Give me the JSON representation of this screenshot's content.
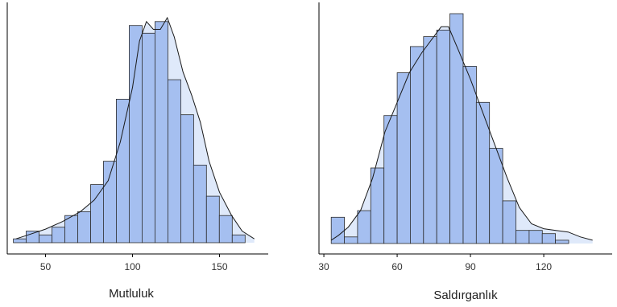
{
  "chart_data": [
    {
      "type": "bar",
      "title": "",
      "xlabel": "Mutluluk",
      "ylabel": "",
      "xlim": [
        28,
        178
      ],
      "xticks": [
        50,
        100,
        150
      ],
      "bin_start": 31.5,
      "bin_width": 7.4,
      "values": [
        1,
        3,
        2,
        4,
        7,
        8,
        15,
        21,
        37,
        56,
        54,
        57,
        42,
        33,
        20,
        12,
        7,
        2
      ],
      "density": [
        [
          33,
          1
        ],
        [
          40,
          2
        ],
        [
          50,
          3.5
        ],
        [
          60,
          5.5
        ],
        [
          70,
          8
        ],
        [
          78,
          11
        ],
        [
          86,
          16
        ],
        [
          93,
          26
        ],
        [
          100,
          40
        ],
        [
          104,
          52
        ],
        [
          108,
          57
        ],
        [
          112,
          55
        ],
        [
          116,
          55
        ],
        [
          120,
          58
        ],
        [
          124,
          53
        ],
        [
          129,
          44
        ],
        [
          134,
          38
        ],
        [
          139,
          31
        ],
        [
          144,
          21
        ],
        [
          150,
          13
        ],
        [
          157,
          7
        ],
        [
          163,
          3
        ],
        [
          170,
          1
        ]
      ],
      "grid": false,
      "colors": {
        "bar": "#a5bff0",
        "density": "#dfe9fa",
        "line": "#1a1a1a"
      }
    },
    {
      "type": "bar",
      "title": "",
      "xlabel": "Saldırganlık",
      "ylabel": "",
      "xlim": [
        28,
        148
      ],
      "xticks": [
        30,
        60,
        90,
        120
      ],
      "bin_start": 33,
      "bin_width": 5.4,
      "values": [
        8,
        2,
        10,
        23,
        39,
        52,
        60,
        63,
        65,
        70,
        54,
        43,
        29,
        13,
        4,
        4,
        3,
        1
      ],
      "density": [
        [
          33,
          1
        ],
        [
          36,
          2.5
        ],
        [
          40,
          5
        ],
        [
          45,
          10
        ],
        [
          50,
          20
        ],
        [
          55,
          34
        ],
        [
          60,
          43
        ],
        [
          65,
          52
        ],
        [
          70,
          58
        ],
        [
          75,
          63
        ],
        [
          78,
          66
        ],
        [
          81,
          66
        ],
        [
          85,
          59
        ],
        [
          90,
          50
        ],
        [
          95,
          40
        ],
        [
          100,
          30
        ],
        [
          105,
          20
        ],
        [
          110,
          11
        ],
        [
          115,
          6
        ],
        [
          120,
          4.5
        ],
        [
          125,
          4
        ],
        [
          130,
          3.5
        ],
        [
          135,
          2
        ],
        [
          140,
          1
        ]
      ],
      "grid": false,
      "colors": {
        "bar": "#a5bff0",
        "density": "#dfe9fa",
        "line": "#1a1a1a"
      }
    }
  ]
}
